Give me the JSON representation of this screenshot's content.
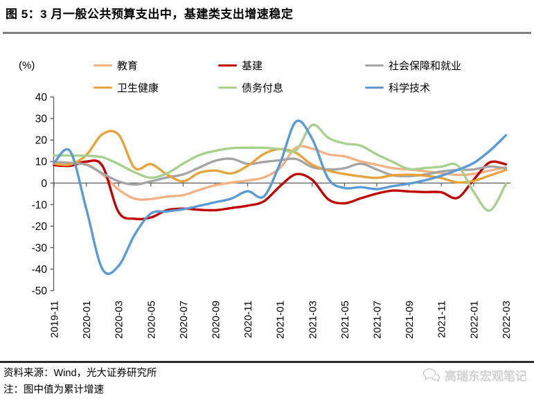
{
  "title": "图 5：3 月一般公共预算支出中，基建类支出增速稳定",
  "footer": {
    "source": "资料来源：Wind，光大证券研究所",
    "note": "注：图中值为累计增速",
    "watermark": "高瑞东宏观笔记"
  },
  "chart_data": {
    "type": "line",
    "unit_label": "(%)",
    "ylim": [
      -50,
      40
    ],
    "yticks": [
      40,
      30,
      20,
      10,
      0,
      -10,
      -20,
      -30,
      -40,
      -50
    ],
    "grid": false,
    "legend_position": "top",
    "x": [
      "2019-11",
      "2019-12",
      "2020-01",
      "2020-02",
      "2020-03",
      "2020-04",
      "2020-05",
      "2020-06",
      "2020-07",
      "2020-08",
      "2020-09",
      "2020-10",
      "2020-11",
      "2020-12",
      "2021-01",
      "2021-02",
      "2021-03",
      "2021-04",
      "2021-05",
      "2021-06",
      "2021-07",
      "2021-08",
      "2021-09",
      "2021-10",
      "2021-11",
      "2021-12",
      "2022-01",
      "2022-02",
      "2022-03"
    ],
    "x_tick_labels": [
      "2019-11",
      "2020-01",
      "2020-03",
      "2020-05",
      "2020-07",
      "2020-09",
      "2020-11",
      "2021-01",
      "2021-03",
      "2021-05",
      "2021-07",
      "2021-09",
      "2021-11",
      "2022-01",
      "2022-03"
    ],
    "axis_color": "#595959",
    "series": [
      {
        "name": "教育",
        "slug": "education",
        "color": "#F4B183",
        "values": [
          8.7,
          8.2,
          8.8,
          4.0,
          -3.0,
          -7.3,
          -7.4,
          -6.3,
          -5.6,
          -3.2,
          -1.0,
          0.2,
          1.2,
          2.6,
          7.0,
          16.5,
          16.0,
          13.3,
          12.4,
          10.1,
          8.5,
          6.9,
          6.3,
          5.5,
          4.6,
          3.8,
          4.2,
          5.8,
          7.3
        ]
      },
      {
        "name": "基建",
        "slug": "infrastructure",
        "color": "#C00000",
        "values": [
          8.3,
          8.0,
          10.0,
          8.0,
          -13.5,
          -16.6,
          -16.0,
          -12.6,
          -11.9,
          -12.4,
          -12.6,
          -11.6,
          -10.5,
          -8.5,
          -1.5,
          4.1,
          1.5,
          -7.6,
          -9.4,
          -7.1,
          -4.9,
          -3.5,
          -3.9,
          -4.2,
          -4.3,
          -6.9,
          1.5,
          9.6,
          8.7
        ]
      },
      {
        "name": "社会保障和就业",
        "slug": "social-security-employment",
        "color": "#A5A5A5",
        "values": [
          9.8,
          9.4,
          8.5,
          4.5,
          0.8,
          -0.7,
          0.8,
          2.6,
          4.0,
          7.2,
          10.4,
          11.3,
          8.9,
          9.8,
          10.6,
          11.2,
          7.4,
          6.3,
          6.9,
          9.0,
          6.3,
          3.6,
          3.2,
          4.0,
          5.4,
          6.1,
          6.3,
          7.7,
          6.8
        ]
      },
      {
        "name": "卫生健康",
        "slug": "health",
        "color": "#E7A33C",
        "values": [
          9.0,
          8.6,
          13.0,
          22.7,
          22.5,
          7.0,
          8.8,
          4.0,
          0.8,
          4.8,
          5.8,
          4.5,
          8.0,
          13.5,
          15.8,
          14.0,
          8.5,
          5.8,
          4.2,
          3.1,
          2.4,
          3.6,
          3.9,
          3.4,
          2.3,
          0.3,
          1.0,
          3.5,
          6.1
        ]
      },
      {
        "name": "债务付息",
        "slug": "debt-interest",
        "color": "#A9D18E",
        "values": [
          12.8,
          12.8,
          12.7,
          12.0,
          8.8,
          5.0,
          2.5,
          4.5,
          9.0,
          13.0,
          15.0,
          16.2,
          16.4,
          16.4,
          15.8,
          15.2,
          27.0,
          21.0,
          18.4,
          17.4,
          13.3,
          9.8,
          6.5,
          7.0,
          7.6,
          8.2,
          -4.0,
          -12.8,
          -0.3
        ]
      },
      {
        "name": "科学技术",
        "slug": "science-technology",
        "color": "#5B9BD5",
        "values": [
          9.4,
          14.8,
          -12.0,
          -40.0,
          -38.5,
          -24.0,
          -14.2,
          -13.2,
          -12.2,
          -10.6,
          -8.9,
          -7.2,
          -3.8,
          -6.2,
          9.0,
          28.6,
          20.5,
          2.0,
          -2.3,
          -1.9,
          -2.8,
          -1.4,
          -0.3,
          1.3,
          3.4,
          6.1,
          9.3,
          15.0,
          22.2
        ]
      }
    ]
  }
}
